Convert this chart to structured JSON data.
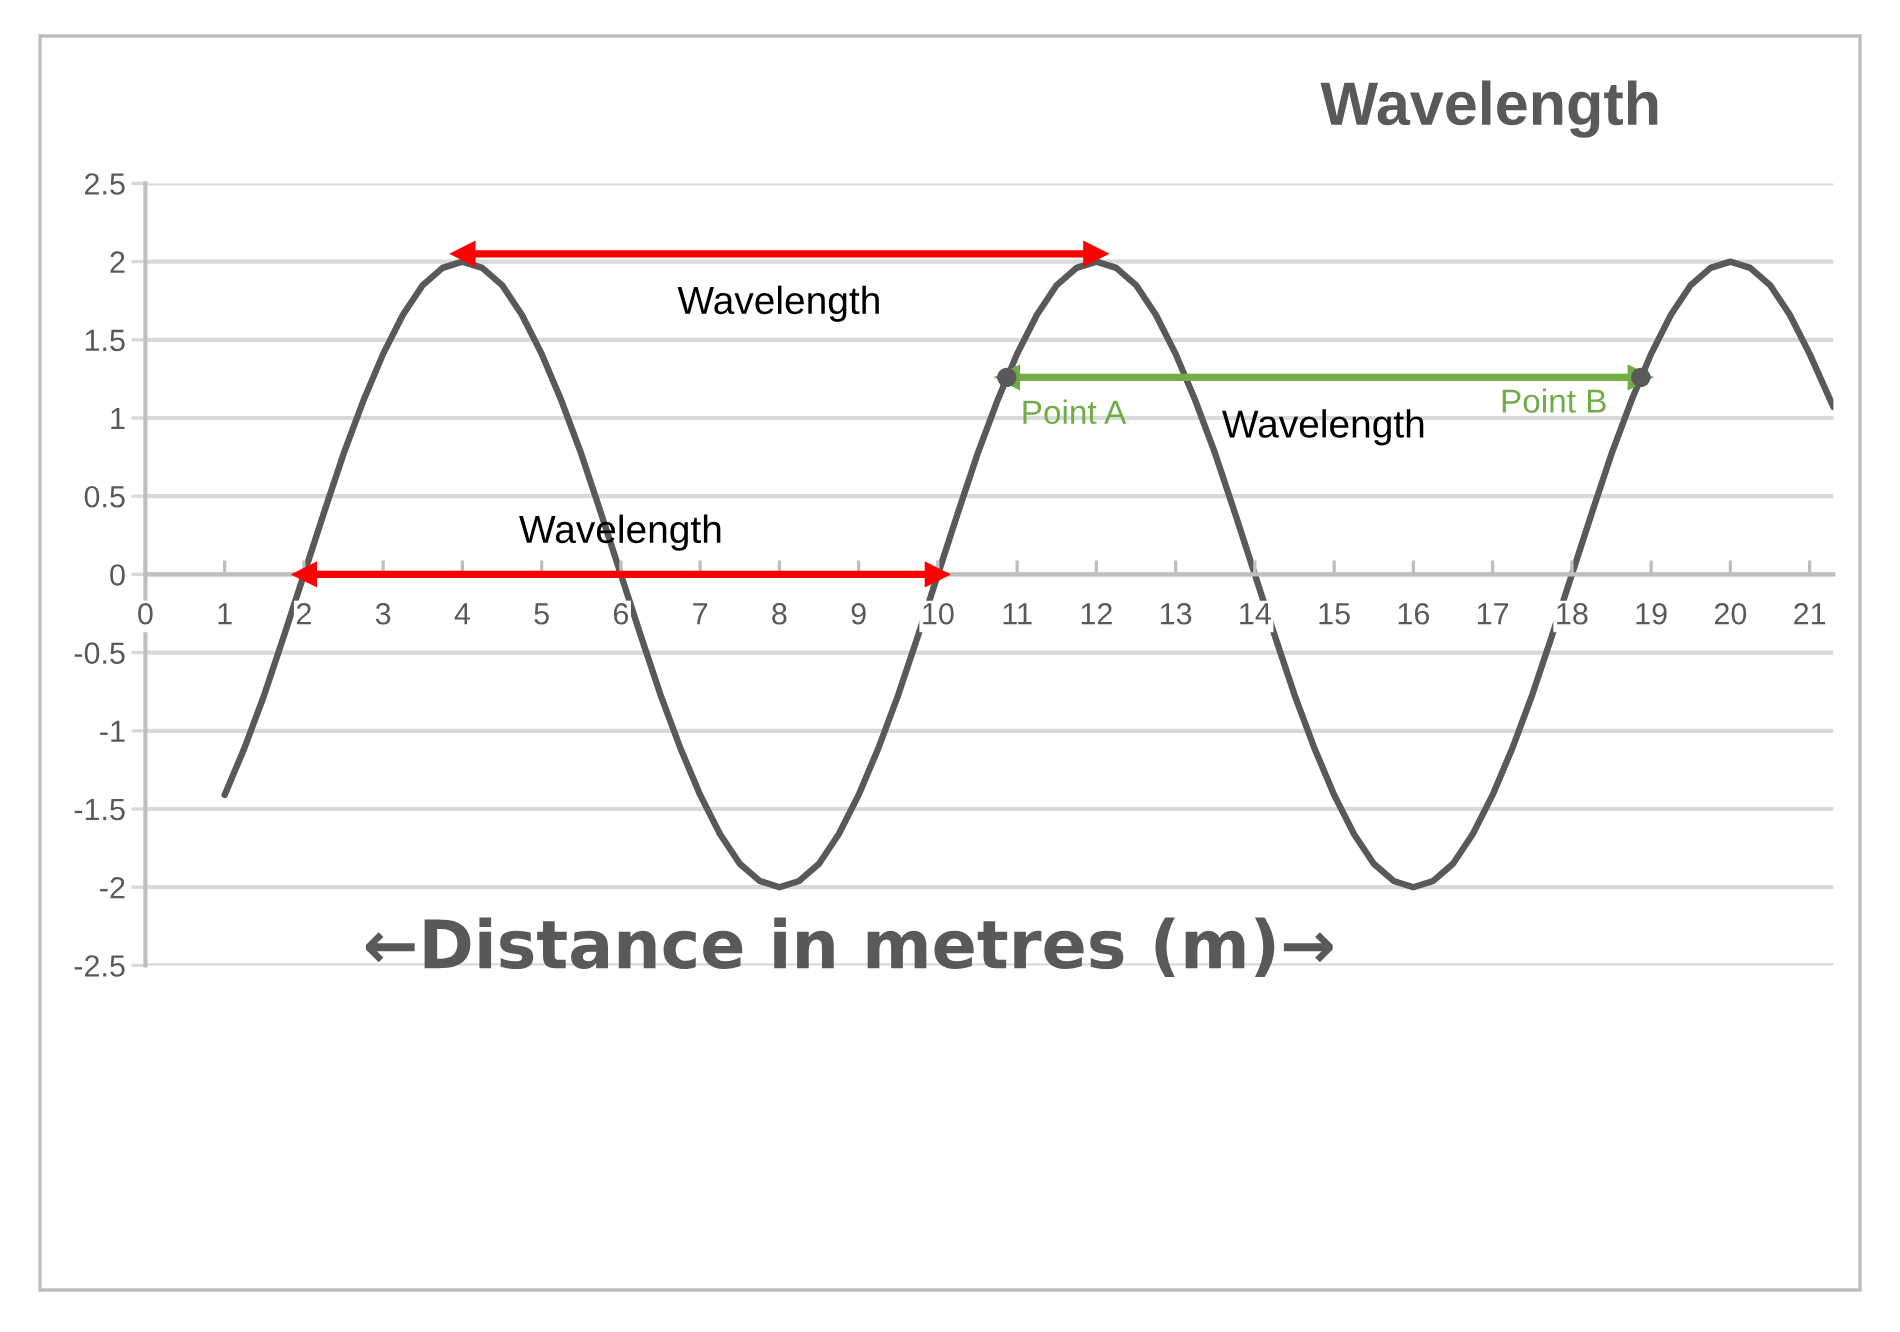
{
  "chart_data": {
    "type": "line",
    "title": "Wavelength",
    "xlabel": "←Distance in metres (m)→",
    "xlim": [
      0,
      21.3
    ],
    "xticks": [
      0,
      1,
      2,
      3,
      4,
      5,
      6,
      7,
      8,
      9,
      10,
      11,
      12,
      13,
      14,
      15,
      16,
      17,
      18,
      19,
      20,
      21
    ],
    "ylim": [
      -2.5,
      2.5
    ],
    "yticks": [
      -2.5,
      -2,
      -1.5,
      -1,
      -0.5,
      0,
      0.5,
      1,
      1.5,
      2,
      2.5
    ],
    "grid": "y",
    "series": [
      {
        "color": "#595959",
        "x": [
          1,
          1.25,
          1.5,
          1.75,
          2,
          2.25,
          2.5,
          2.75,
          3,
          3.25,
          3.5,
          3.75,
          4,
          4.25,
          4.5,
          4.75,
          5,
          5.25,
          5.5,
          5.75,
          6,
          6.25,
          6.5,
          6.75,
          7,
          7.25,
          7.5,
          7.75,
          8,
          8.25,
          8.5,
          8.75,
          9,
          9.25,
          9.5,
          9.75,
          10,
          10.25,
          10.5,
          10.75,
          11,
          11.25,
          11.5,
          11.75,
          12,
          12.25,
          12.5,
          12.75,
          13,
          13.25,
          13.5,
          13.75,
          14,
          14.25,
          14.5,
          14.75,
          15,
          15.25,
          15.5,
          15.75,
          16,
          16.25,
          16.5,
          16.75,
          17,
          17.25,
          17.5,
          17.75,
          18,
          18.25,
          18.5,
          18.75,
          19,
          19.25,
          19.5,
          19.75,
          20,
          20.25,
          20.5,
          20.75,
          21,
          21.3
        ],
        "values": [
          -1.41,
          -1.11,
          -0.77,
          -0.39,
          0,
          0.39,
          0.77,
          1.11,
          1.41,
          1.66,
          1.85,
          1.96,
          2,
          1.96,
          1.85,
          1.66,
          1.41,
          1.11,
          0.77,
          0.39,
          0,
          -0.39,
          -0.77,
          -1.11,
          -1.41,
          -1.66,
          -1.85,
          -1.96,
          -2,
          -1.96,
          -1.85,
          -1.66,
          -1.41,
          -1.11,
          -0.77,
          -0.39,
          0,
          0.39,
          0.77,
          1.11,
          1.41,
          1.66,
          1.85,
          1.96,
          2,
          1.96,
          1.85,
          1.66,
          1.41,
          1.11,
          0.77,
          0.39,
          0,
          -0.39,
          -0.77,
          -1.11,
          -1.41,
          -1.66,
          -1.85,
          -1.96,
          -2,
          -1.96,
          -1.85,
          -1.66,
          -1.41,
          -1.11,
          -0.77,
          -0.39,
          0,
          0.39,
          0.77,
          1.11,
          1.41,
          1.66,
          1.85,
          1.96,
          2,
          1.96,
          1.85,
          1.66,
          1.41,
          1.07
        ]
      },
      {
        "type": "line",
        "name": "Wavelength",
        "color": "#ff0000",
        "marker": "triangle",
        "x": [
          4,
          12
        ],
        "values": [
          2.05,
          2.05
        ]
      },
      {
        "type": "line",
        "name": "Wavelength",
        "color": "#ff0000",
        "marker": "triangle",
        "x": [
          2,
          10
        ],
        "values": [
          0,
          0
        ]
      },
      {
        "type": "line",
        "name": "Wavelength",
        "color": "#70ad47",
        "marker": "triangle",
        "x": [
          10.87,
          18.87
        ],
        "values": [
          1.26,
          1.26
        ],
        "value_labels": [
          "Point A",
          "Point B"
        ]
      },
      {
        "type": "scatter",
        "color": "#595959",
        "marker": "circle",
        "x": [
          10.87,
          18.87
        ],
        "values": [
          1.26,
          1.26
        ]
      }
    ]
  }
}
